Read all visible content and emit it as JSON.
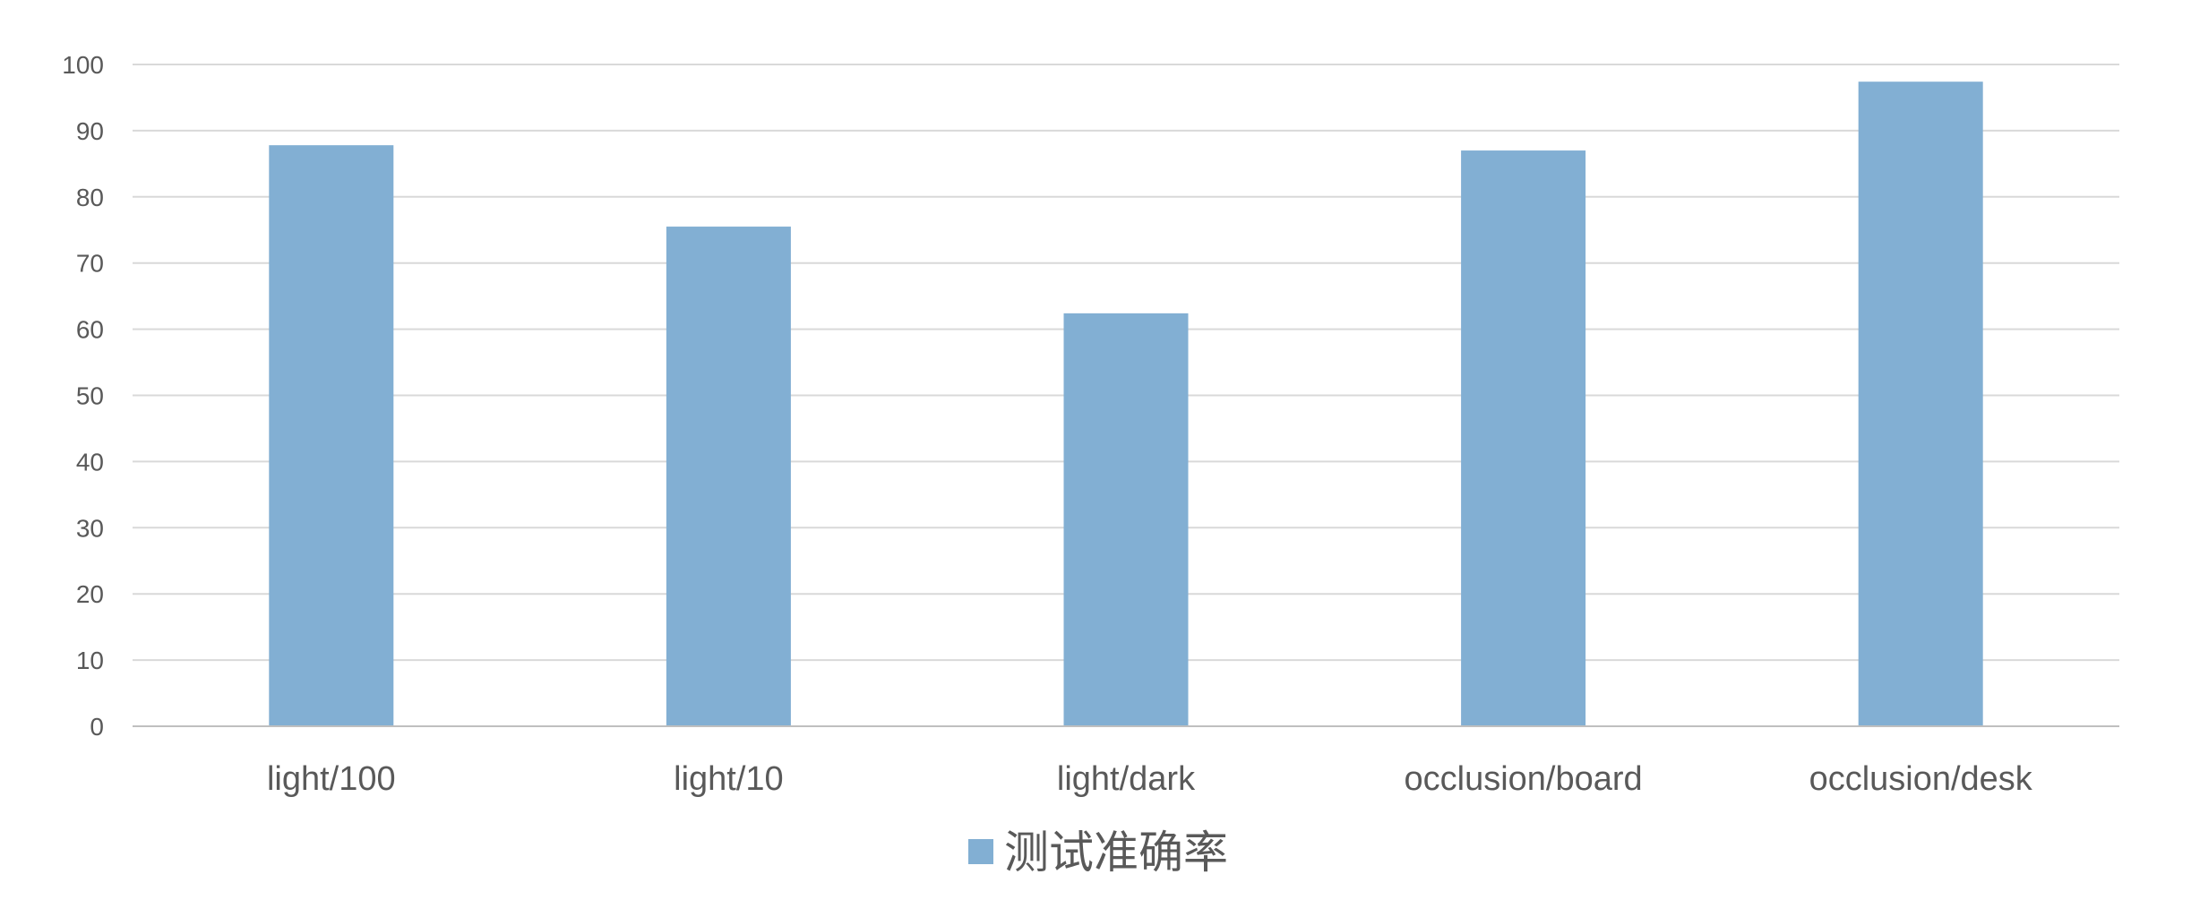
{
  "chart_data": {
    "type": "bar",
    "categories": [
      "light/100",
      "light/10",
      "light/dark",
      "occlusion/board",
      "occlusion/desk"
    ],
    "series": [
      {
        "name": "测试准确率",
        "values": [
          87.8,
          75.5,
          62.4,
          87.0,
          97.4
        ]
      }
    ],
    "yticks": [
      "0",
      "10",
      "20",
      "30",
      "40",
      "50",
      "60",
      "70",
      "80",
      "90",
      "100"
    ],
    "ylim": [
      0,
      100
    ],
    "grid": true,
    "legend_position": "bottom",
    "colors": {
      "bar": "#82afd3",
      "grid": "#d9d9d9",
      "axis": "#bfbfbf",
      "text": "#595959"
    }
  }
}
